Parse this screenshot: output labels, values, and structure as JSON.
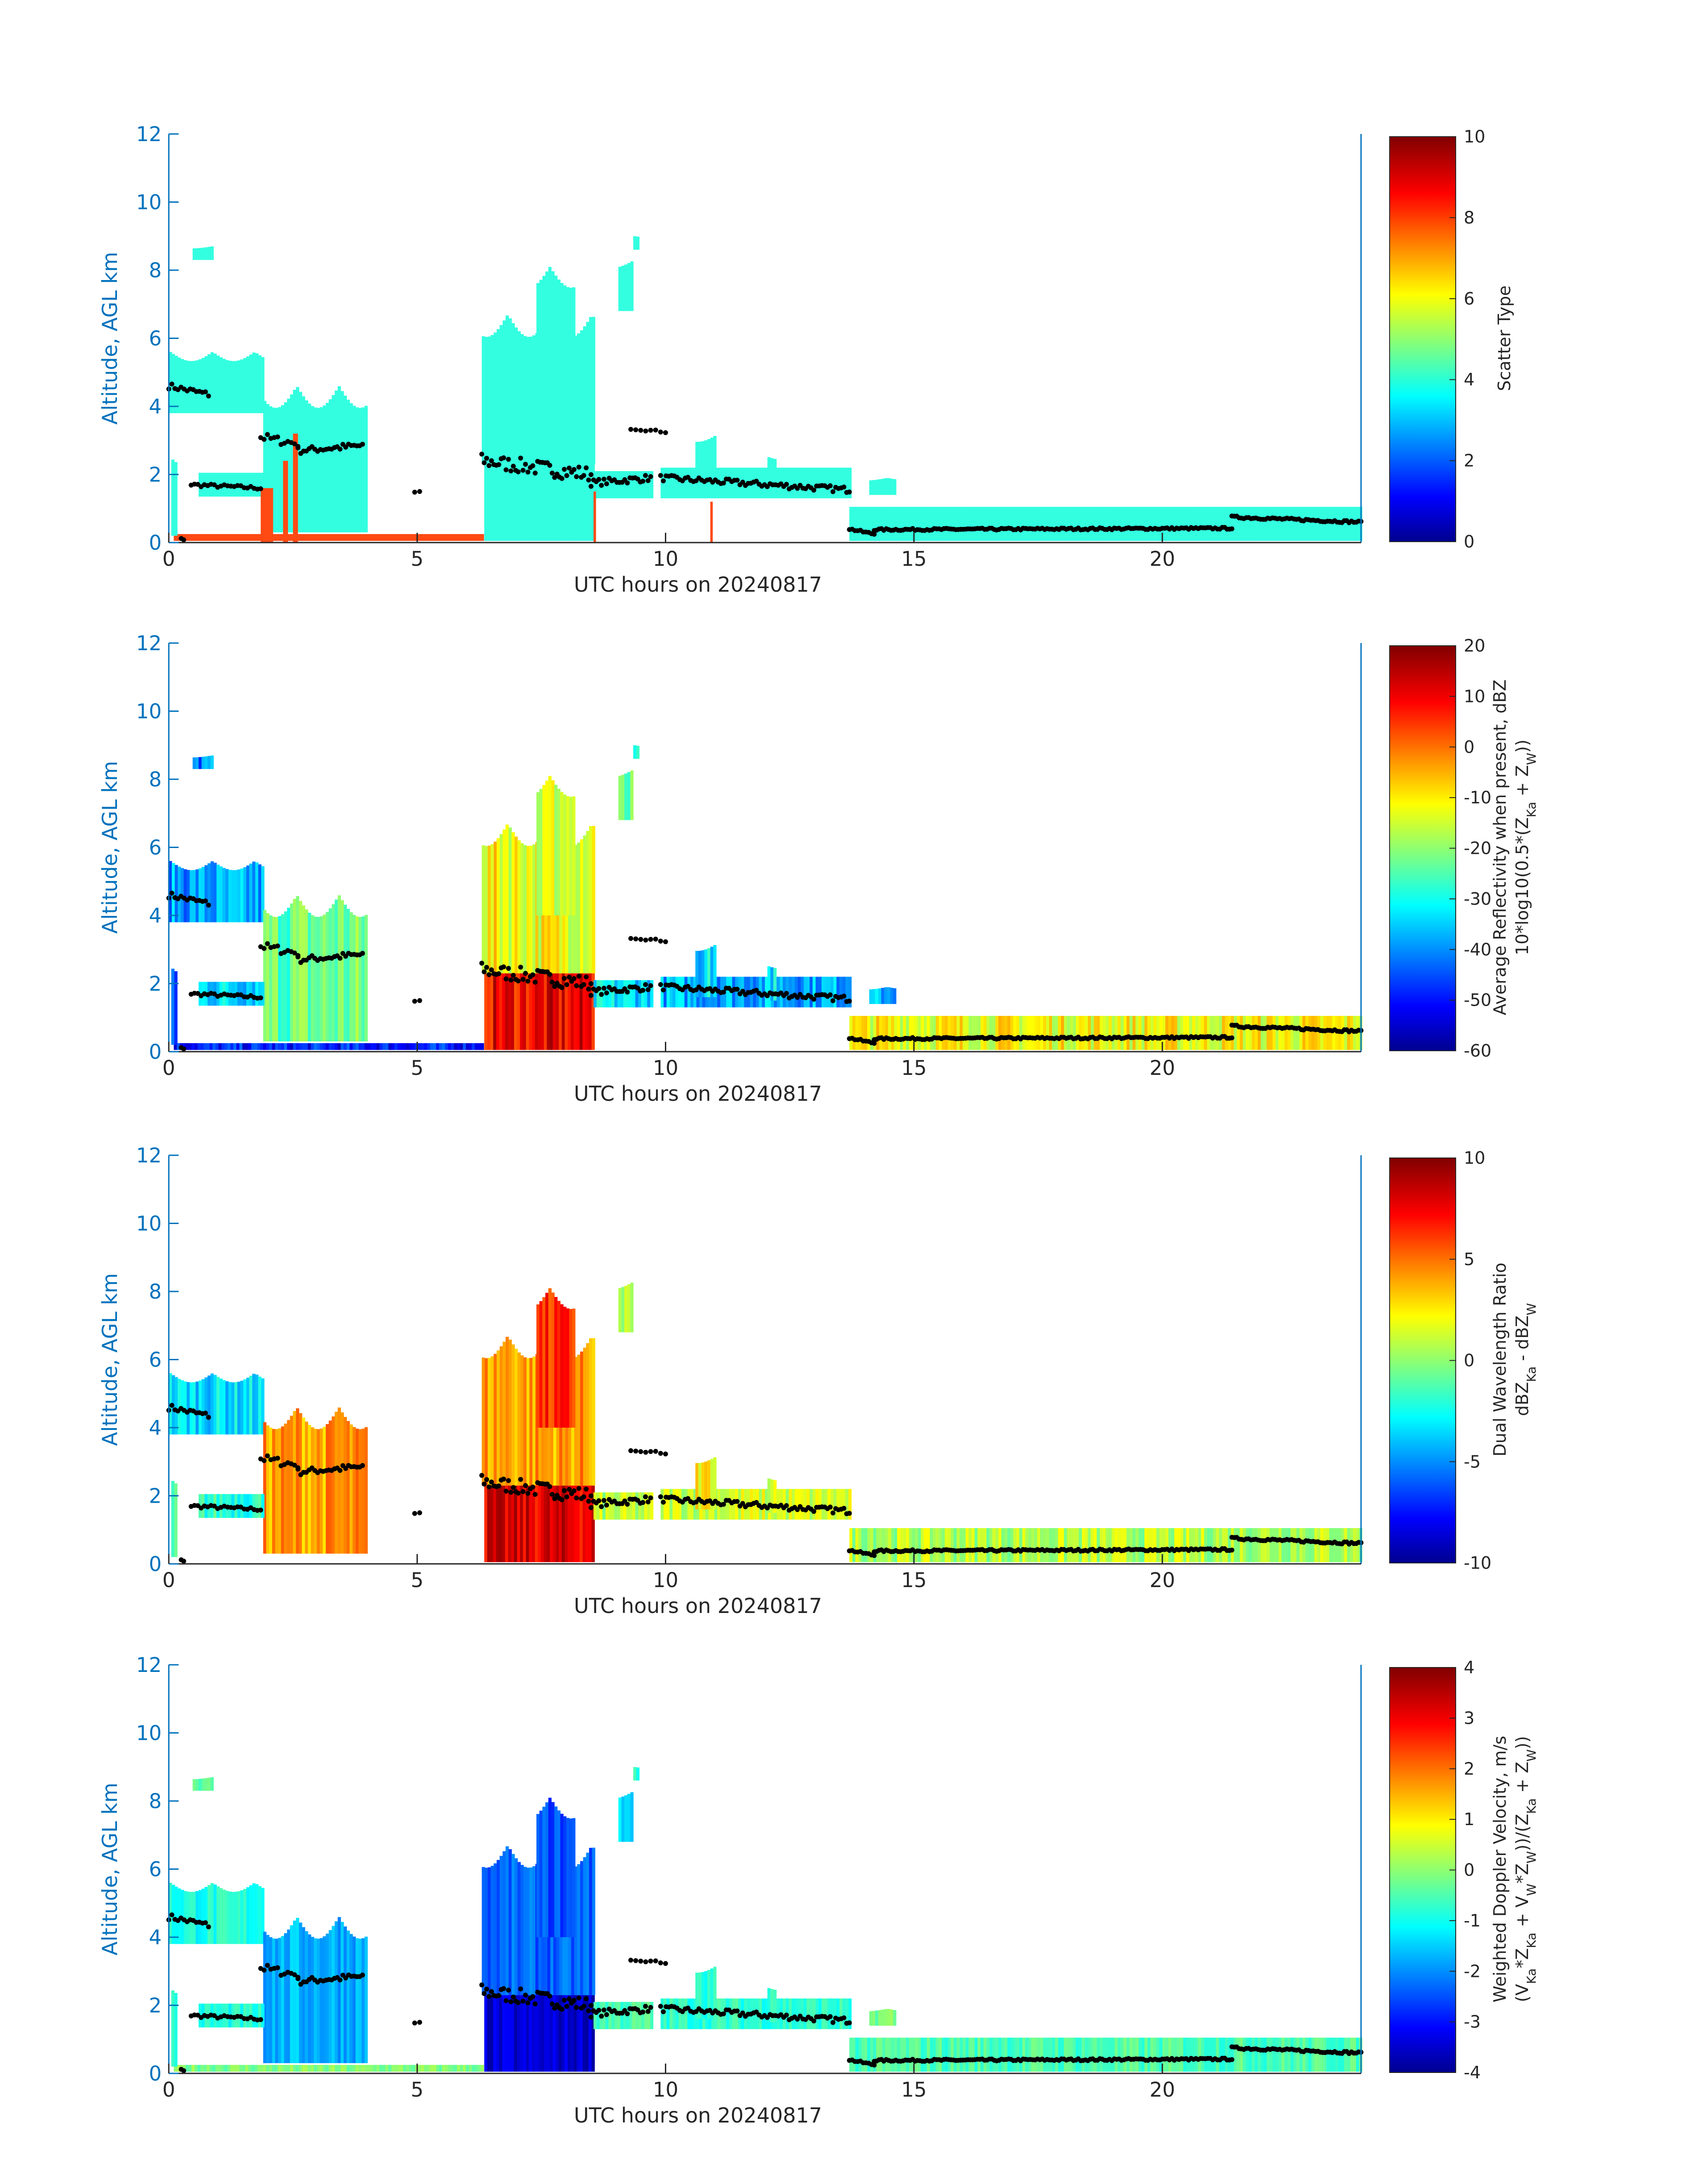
{
  "figure": {
    "date": "20240817"
  },
  "chart_data": [
    {
      "type": "heatmap",
      "xlabel": "UTC hours on 20240817",
      "ylabel": "Altitude, AGL km",
      "xlim": [
        0,
        24
      ],
      "ylim": [
        0,
        12
      ],
      "xticks": [
        "0",
        "5",
        "10",
        "15",
        "20"
      ],
      "yticks": [
        "0",
        "2",
        "4",
        "6",
        "8",
        "10",
        "12"
      ],
      "colorbar": {
        "label_lines": [
          "Scatter Type"
        ],
        "range": [
          0,
          10
        ],
        "ticks": [
          "0",
          "2",
          "4",
          "6",
          "8",
          "10"
        ],
        "colormap": "jet"
      },
      "scheme": "scatter",
      "colors": {
        "cloud": "#33ffe0",
        "rain": "#ff4a14"
      }
    },
    {
      "type": "heatmap",
      "xlabel": "UTC hours on 20240817",
      "ylabel": "Altitude, AGL km",
      "xlim": [
        0,
        24
      ],
      "ylim": [
        0,
        12
      ],
      "xticks": [
        "0",
        "5",
        "10",
        "15",
        "20"
      ],
      "yticks": [
        "0",
        "2",
        "4",
        "6",
        "8",
        "10",
        "12"
      ],
      "colorbar": {
        "label_lines": [
          "Average Reflectivity when present, dBZ",
          "10*log10(0.5*(Z_Ka + Z_W))"
        ],
        "range": [
          -60,
          20
        ],
        "ticks": [
          "-60",
          "-50",
          "-40",
          "-30",
          "-20",
          "-10",
          "0",
          "10",
          "20"
        ],
        "colormap": "jet"
      },
      "scheme": "reflectivity"
    },
    {
      "type": "heatmap",
      "xlabel": "UTC hours on 20240817",
      "ylabel": "Altitude, AGL km",
      "xlim": [
        0,
        24
      ],
      "ylim": [
        0,
        12
      ],
      "xticks": [
        "0",
        "5",
        "10",
        "15",
        "20"
      ],
      "yticks": [
        "0",
        "2",
        "4",
        "6",
        "8",
        "10",
        "12"
      ],
      "colorbar": {
        "label_lines": [
          "Dual Wavelength Ratio",
          "dBZ_Ka - dBZ_W"
        ],
        "range": [
          -10,
          10
        ],
        "ticks": [
          "-10",
          "-5",
          "0",
          "5",
          "10"
        ],
        "colormap": "jet"
      },
      "scheme": "dwr"
    },
    {
      "type": "heatmap",
      "xlabel": "UTC hours on 20240817",
      "ylabel": "Altitude, AGL km",
      "xlim": [
        0,
        24
      ],
      "ylim": [
        0,
        12
      ],
      "xticks": [
        "0",
        "5",
        "10",
        "15",
        "20"
      ],
      "yticks": [
        "0",
        "2",
        "4",
        "6",
        "8",
        "10",
        "12"
      ],
      "colorbar": {
        "label_lines": [
          "Weighted Doppler Velocity, m/s",
          "(V_Ka*Z_Ka + V_W*Z_W))/(Z_Ka + Z_W))"
        ],
        "range": [
          -4,
          4
        ],
        "ticks": [
          "-4",
          "-3",
          "-2",
          "-1",
          "0",
          "1",
          "2",
          "3",
          "4"
        ],
        "colormap": "jet"
      },
      "scheme": "velocity"
    }
  ]
}
